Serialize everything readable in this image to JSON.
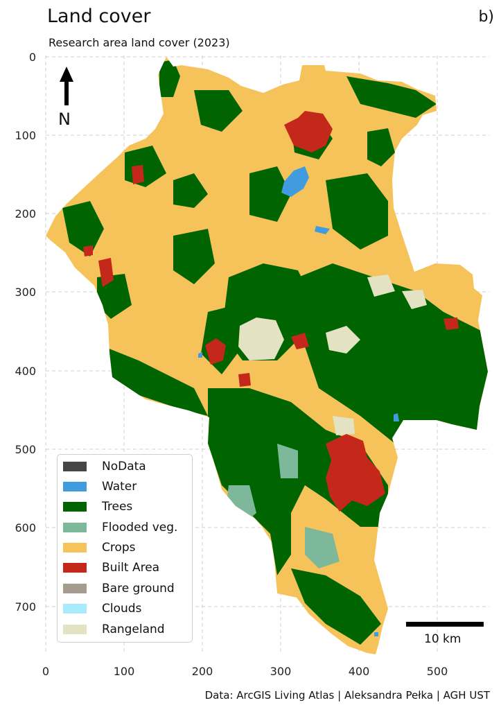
{
  "header": {
    "title": "Land cover",
    "subtitle": "Research area land cover (2023)",
    "panel_label": "b)"
  },
  "footer": {
    "credit": "Data: ArcGIS Living Atlas | Aleksandra Pełka | AGH UST"
  },
  "map": {
    "x_ticks": [
      "0",
      "100",
      "200",
      "300",
      "400",
      "500"
    ],
    "y_ticks": [
      "0",
      "100",
      "200",
      "300",
      "400",
      "500",
      "600",
      "700"
    ],
    "grid": true,
    "north_label": "N",
    "scale_label": "10 km"
  },
  "legend": {
    "items": [
      {
        "label": "NoData",
        "color": "#454545"
      },
      {
        "label": "Water",
        "color": "#419bdf"
      },
      {
        "label": "Trees",
        "color": "#006400"
      },
      {
        "label": "Flooded veg.",
        "color": "#7eb89a"
      },
      {
        "label": "Crops",
        "color": "#f6c35a"
      },
      {
        "label": "Built Area",
        "color": "#c4281b"
      },
      {
        "label": "Bare ground",
        "color": "#a59b8f"
      },
      {
        "label": "Clouds",
        "color": "#a8ebff"
      },
      {
        "label": "Rangeland",
        "color": "#e3e2c3"
      }
    ]
  }
}
